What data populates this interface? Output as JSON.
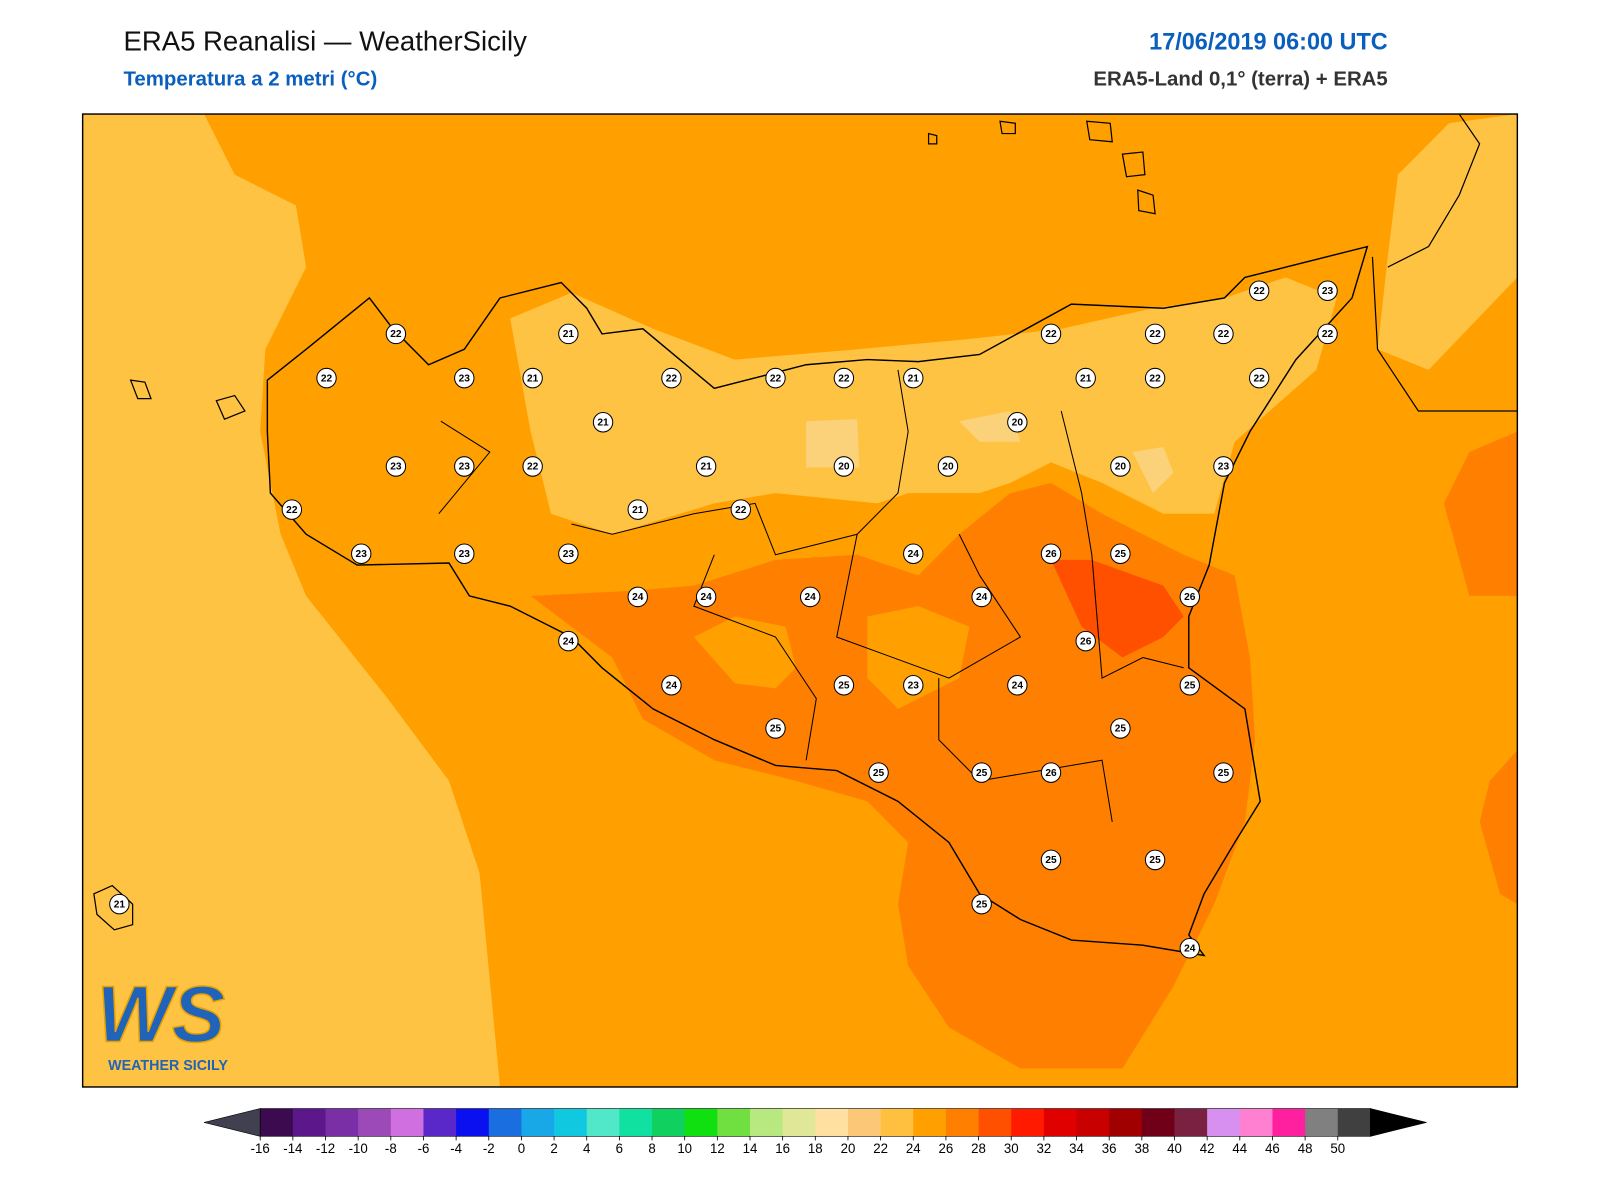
{
  "header": {
    "title": "ERA5 Reanalisi — WeatherSicily",
    "subtitle": "Temperatura a 2 metri (°C)",
    "date": "17/06/2019 06:00 UTC",
    "source": "ERA5-Land 0,1° (terra) + ERA5"
  },
  "stations": {
    "values": [
      22,
      22,
      23,
      21,
      21,
      21,
      22,
      22,
      22,
      21,
      22,
      22,
      22,
      22,
      22,
      23,
      22,
      22,
      21,
      20,
      20,
      20,
      21,
      22,
      23,
      23,
      22,
      23,
      23,
      23,
      21,
      22,
      24,
      26,
      25,
      26,
      23,
      20,
      24,
      24,
      24,
      24,
      24,
      26,
      24,
      25,
      23,
      24,
      25,
      25,
      25,
      25,
      26,
      25,
      25,
      25,
      25,
      25,
      24,
      21
    ]
  },
  "logo": {
    "mark": "WS",
    "name": "WEATHER SICILY"
  },
  "colorbar": {
    "ticks": [
      -16,
      -14,
      -12,
      -10,
      -8,
      -6,
      -4,
      -2,
      0,
      2,
      4,
      6,
      8,
      10,
      12,
      14,
      16,
      18,
      20,
      22,
      24,
      26,
      28,
      30,
      32,
      34,
      36,
      38,
      40,
      42,
      44,
      46,
      48,
      50
    ],
    "colors": [
      "#3b0a4f",
      "#5c178a",
      "#7b2fa6",
      "#9c4ab8",
      "#d070e0",
      "#5a28c8",
      "#0a10f0",
      "#1a6ee0",
      "#18a8e8",
      "#10c8e0",
      "#50e8c8",
      "#10e0a0",
      "#10d060",
      "#10e010",
      "#70e040",
      "#b8e880",
      "#e0e898",
      "#ffe0a0",
      "#fcc878",
      "#ffc040",
      "#ffa000",
      "#ff8000",
      "#ff5000",
      "#ff1a00",
      "#e00000",
      "#c80000",
      "#a00000",
      "#700018",
      "#7a2040",
      "#d890f0",
      "#ff80d0",
      "#ff20a0",
      "#808080",
      "#404040"
    ],
    "under": "#404050",
    "over": "#000000"
  }
}
